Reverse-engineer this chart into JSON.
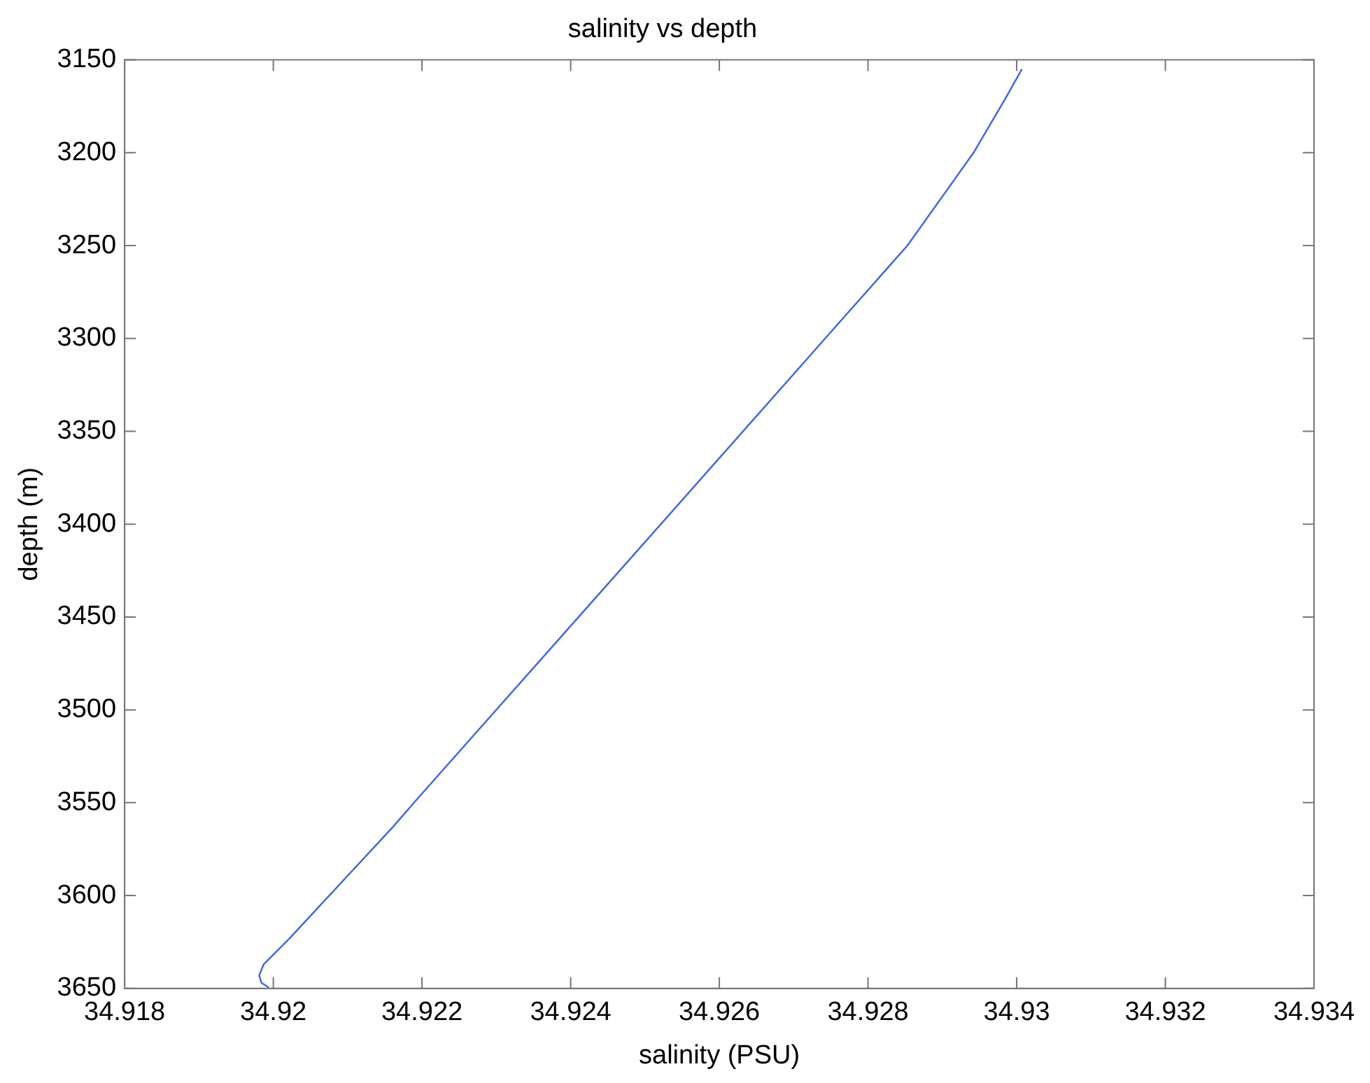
{
  "chart_data": {
    "type": "line",
    "title": "salinity vs depth",
    "xlabel": "salinity (PSU)",
    "ylabel": "depth (m)",
    "xlim": [
      34.918,
      34.934
    ],
    "xticks": [
      34.918,
      34.92,
      34.922,
      34.924,
      34.926,
      34.928,
      34.93,
      34.932,
      34.934
    ],
    "ylim": [
      3650,
      3150
    ],
    "yticks": [
      3150,
      3200,
      3250,
      3300,
      3350,
      3400,
      3450,
      3500,
      3550,
      3600,
      3650
    ],
    "grid": false,
    "legend": false,
    "marker": "none",
    "line_style": "solid",
    "series": [
      {
        "color": "#3d66e0",
        "x": [
          34.93007,
          34.92986,
          34.92942,
          34.92853,
          34.92738,
          34.92486,
          34.92198,
          34.92161,
          34.92022,
          34.91987,
          34.91981,
          34.91984,
          34.91994
        ],
        "values": [
          3155,
          3170,
          3200,
          3250,
          3302,
          3416,
          3546,
          3563,
          3623,
          3637,
          3643,
          3647,
          3649.5
        ]
      }
    ]
  }
}
